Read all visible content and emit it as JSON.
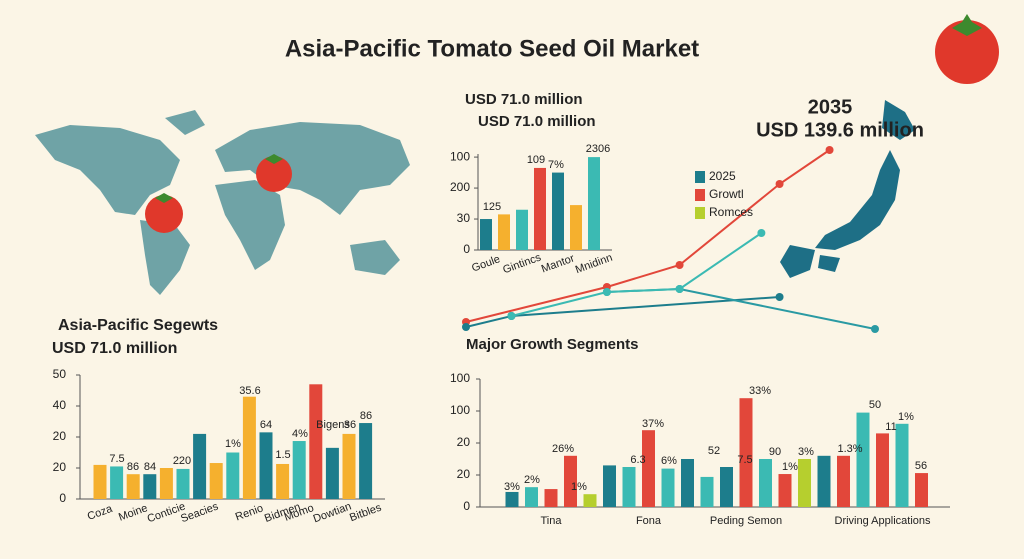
{
  "title": "Asia-Pacific Tomato Seed Oil Market",
  "chart_data": [
    {
      "type": "bar",
      "headings": [
        "USD 71.0 million",
        "USD 71.0 million"
      ],
      "categories": [
        "Goule",
        null,
        "Gintincs",
        null,
        "Mantor",
        null,
        "Mnidinn"
      ],
      "values": [
        1.0,
        1.15,
        1.3,
        2.65,
        2.5,
        1.45,
        3.0
      ],
      "colors": [
        "#1d7d8c",
        "#f5b02e",
        "#3bbab3",
        "#e2473a",
        "#1d7d8c",
        "#f5b02e",
        "#3bbab3"
      ],
      "annotations": [
        "125",
        "109",
        "7%",
        "2306"
      ],
      "ylim": [
        0,
        3.1
      ],
      "yticks": [
        {
          "value": 0,
          "label": "0"
        },
        {
          "value": 1,
          "label": "30"
        },
        {
          "value": 2,
          "label": "200"
        },
        {
          "value": 3,
          "label": "100"
        }
      ]
    },
    {
      "type": "line",
      "annotations": [
        "2035",
        "USD 139.6 million"
      ],
      "legend": [
        {
          "name": "2025",
          "color": "#1d7d8c"
        },
        {
          "name": "Growtl",
          "color": "#e2473a"
        },
        {
          "name": "Romces",
          "color": "#b6cf2e"
        }
      ],
      "xlim": [
        0,
        9
      ],
      "ylim": [
        0,
        10
      ],
      "series": [
        {
          "color": "#e2473a",
          "x": [
            0,
            3.1,
            4.7,
            6.9,
            8.0
          ],
          "values": [
            0.9,
            2.65,
            3.75,
            7.8,
            9.5
          ]
        },
        {
          "color": "#1d7d8c",
          "x": [
            0,
            1,
            6.9
          ],
          "values": [
            0.65,
            1.2,
            2.15
          ]
        },
        {
          "color": "#2a9aa3",
          "x": [
            3.1,
            4.7,
            9.0
          ],
          "values": [
            2.4,
            2.55,
            0.55
          ]
        },
        {
          "color": "#3bbab3",
          "x": [
            1,
            3.1,
            4.7,
            6.5
          ],
          "values": [
            1.2,
            2.4,
            2.55,
            5.35
          ]
        }
      ]
    },
    {
      "type": "bar",
      "headings": [
        "Asia-Pacific Segewts",
        "USD 71.0 million"
      ],
      "categories": [
        "Coza",
        null,
        "Moine",
        null,
        "Conticie",
        null,
        "Seacies",
        null,
        null,
        "Renio",
        null,
        "Bidmen",
        "Momo",
        null,
        "Dowtian",
        null,
        "Bitbles"
      ],
      "values": [
        1.1,
        1.05,
        0.8,
        0.8,
        1.0,
        0.97,
        2.1,
        1.16,
        1.5,
        3.3,
        2.15,
        1.13,
        1.87,
        3.7,
        1.65,
        2.1,
        2.45
      ],
      "colors": [
        "#f5b02e",
        "#3bbab3",
        "#f5b02e",
        "#1d7d8c",
        "#f5b02e",
        "#3bbab3",
        "#1d7d8c",
        "#f5b02e",
        "#3bbab3",
        "#f5b02e",
        "#1d7d8c",
        "#f5b02e",
        "#3bbab3",
        "#e2473a",
        "#1d7d8c",
        "#f5b02e",
        "#1d7d8c"
      ],
      "annotations": [
        "7.5",
        "86",
        "84",
        "220",
        "1%",
        "35.6",
        "64",
        "1.5",
        "4%",
        "Bigens",
        "36",
        "86"
      ],
      "ylim": [
        0,
        4
      ],
      "yticks": [
        {
          "value": 0,
          "label": "0"
        },
        {
          "value": 1,
          "label": "20"
        },
        {
          "value": 2,
          "label": "20"
        },
        {
          "value": 3,
          "label": "40"
        },
        {
          "value": 4,
          "label": "50"
        }
      ]
    },
    {
      "type": "bar",
      "headings": [
        "Major Growth Segments"
      ],
      "categories": [
        null,
        null,
        "Tina",
        null,
        null,
        null,
        null,
        "Fona",
        null,
        null,
        null,
        null,
        "Peding Semon",
        null,
        null,
        null,
        null,
        null,
        null,
        "Driving Applications",
        null,
        null
      ],
      "values": [
        0.47,
        0.62,
        0.56,
        1.6,
        0.4,
        1.3,
        1.25,
        2.4,
        1.2,
        1.5,
        0.94,
        1.25,
        3.4,
        1.5,
        1.03,
        1.5,
        1.6,
        1.6,
        2.95,
        2.3,
        2.6,
        1.06
      ],
      "colors": [
        "#1d7d8c",
        "#3bbab3",
        "#e2473a",
        "#e2473a",
        "#b6cf2e",
        "#1d7d8c",
        "#3bbab3",
        "#e2473a",
        "#3bbab3",
        "#1d7d8c",
        "#3bbab3",
        "#1d7d8c",
        "#e2473a",
        "#3bbab3",
        "#e2473a",
        "#b6cf2e",
        "#1d7d8c",
        "#e2473a",
        "#3bbab3",
        "#e2473a",
        "#3bbab3",
        "#e2473a"
      ],
      "annotations": [
        "3%",
        "2%",
        "26%",
        "1%",
        "6.3",
        "37%",
        "6%",
        "52",
        "7.5",
        "33%",
        "90",
        "1%",
        "3%",
        "1.3%",
        "50",
        "1%",
        "11",
        "56"
      ],
      "ylim": [
        0,
        4
      ],
      "yticks": [
        {
          "value": 0,
          "label": "0"
        },
        {
          "value": 1,
          "label": "20"
        },
        {
          "value": 2,
          "label": "20"
        },
        {
          "value": 3,
          "label": "100"
        },
        {
          "value": 4,
          "label": "100"
        }
      ]
    }
  ]
}
